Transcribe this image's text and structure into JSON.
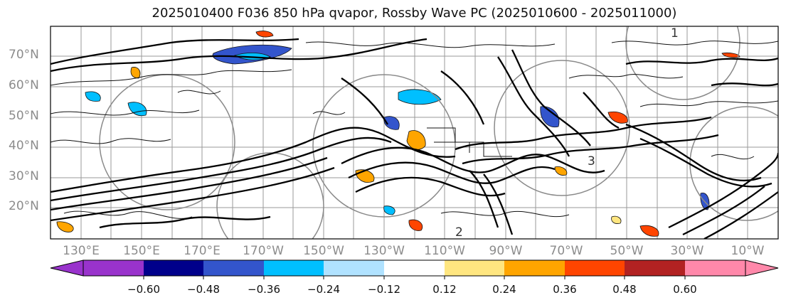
{
  "title": "2025010400 F036 850 hPa qvapor, Rossby Wave PC (2025010600 - 2025011000)",
  "latitude_labels": [
    "70°N",
    "60°N",
    "50°N",
    "40°N",
    "30°N",
    "20°N"
  ],
  "longitude_labels": [
    "130°E",
    "150°E",
    "170°E",
    "170°W",
    "150°W",
    "130°W",
    "110°W",
    "90°W",
    "70°W",
    "50°W",
    "30°W",
    "10°W"
  ],
  "colorbar": {
    "tick_labels": [
      "−0.60",
      "−0.48",
      "−0.36",
      "−0.24",
      "−0.12",
      "0.12",
      "0.24",
      "0.36",
      "0.48",
      "0.60"
    ],
    "colors": [
      "#9933cc",
      "#00008b",
      "#3355cc",
      "#00bfff",
      "#b0e2ff",
      "#ffffff",
      "#ffe680",
      "#ffa500",
      "#ff4500",
      "#b22222",
      "#ff88aa"
    ]
  },
  "contour_labels": [
    "1",
    "3",
    "2"
  ]
}
